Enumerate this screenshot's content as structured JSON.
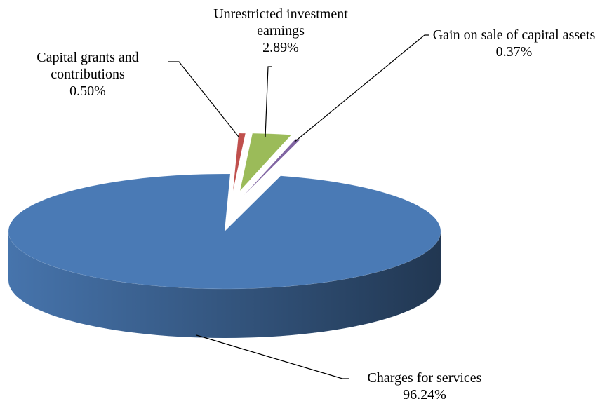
{
  "chart_data": {
    "type": "pie",
    "categories": [
      "Capital grants and contributions",
      "Unrestricted investment earnings",
      "Gain on sale of capital assets",
      "Charges for services"
    ],
    "values": [
      0.5,
      2.89,
      0.37,
      96.24
    ],
    "value_labels": [
      "0.50%",
      "2.89%",
      "0.37%",
      "96.24%"
    ],
    "colors": [
      "#c0504d",
      "#9bbb59",
      "#8064a2",
      "#4a7ab5"
    ]
  }
}
